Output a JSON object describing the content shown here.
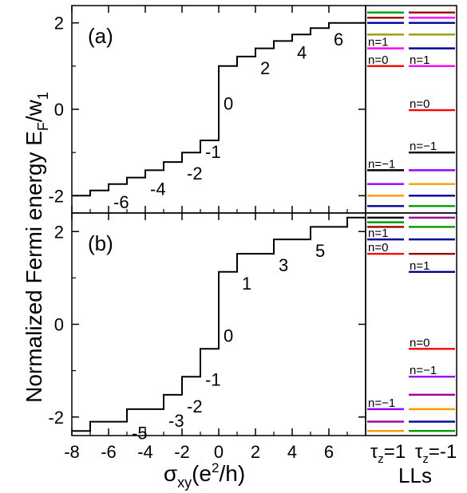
{
  "figure": {
    "ylabel_main": "Normalized Fermi energy E",
    "ylabel_sub": "F",
    "ylabel_sep": "/w",
    "ylabel_sub2": "1",
    "xlabel_sigma": "σ",
    "xlabel_sub": "xy",
    "xlabel_rest": "(e",
    "xlabel_sup": "2",
    "xlabel_end": "/h)",
    "ll_title": "LLs",
    "tau_sym": "τ",
    "tau_sub": "z",
    "tau1_value": "=1",
    "tau2_value": "=-1"
  },
  "colors": {
    "black": "#000000",
    "red": "#ff0000",
    "magenta": "#ff00ff",
    "olive": "#999900",
    "navy": "#000099",
    "maroon": "#990000",
    "purple": "#9900ff",
    "orange": "#ff9900",
    "green": "#009900",
    "violet": "#990099"
  },
  "chart_data": [
    {
      "type": "line",
      "panel_label": "(a)",
      "xlim": [
        -8,
        8
      ],
      "ylim": [
        -2.4,
        2.4
      ],
      "xticks": [
        -8,
        -6,
        -4,
        -2,
        0,
        2,
        4,
        6
      ],
      "yticks": [
        -2,
        0,
        2
      ],
      "ytick_labels": [
        "-2",
        "0",
        "2"
      ],
      "curve": [
        [
          -8,
          -2.0
        ],
        [
          -7,
          -2.0
        ],
        [
          -7,
          -1.88
        ],
        [
          -6,
          -1.88
        ],
        [
          -6,
          -1.73
        ],
        [
          -5,
          -1.73
        ],
        [
          -5,
          -1.58
        ],
        [
          -4,
          -1.58
        ],
        [
          -4,
          -1.41
        ],
        [
          -3,
          -1.41
        ],
        [
          -3,
          -1.22
        ],
        [
          -2,
          -1.22
        ],
        [
          -2,
          -1.0
        ],
        [
          -1,
          -1.0
        ],
        [
          -1,
          -0.72
        ],
        [
          0,
          -0.72
        ],
        [
          0,
          1.0
        ],
        [
          1,
          1.0
        ],
        [
          1,
          1.22
        ],
        [
          2,
          1.22
        ],
        [
          2,
          1.41
        ],
        [
          3,
          1.41
        ],
        [
          3,
          1.58
        ],
        [
          4,
          1.58
        ],
        [
          4,
          1.73
        ],
        [
          5,
          1.73
        ],
        [
          5,
          1.88
        ],
        [
          6,
          1.88
        ],
        [
          6,
          2.0
        ],
        [
          7,
          2.0
        ],
        [
          7,
          2.0
        ],
        [
          8,
          2.0
        ]
      ],
      "step_labels": [
        {
          "text": "-6",
          "x": -6,
          "y": -1.88
        },
        {
          "text": "-4",
          "x": -4,
          "y": -1.58
        },
        {
          "text": "-2",
          "x": -2,
          "y": -1.22
        },
        {
          "text": "-1",
          "x": -1,
          "y": -0.72
        },
        {
          "text": "0",
          "x": 0,
          "y": 0.4
        },
        {
          "text": "2",
          "x": 2,
          "y": 1.22
        },
        {
          "text": "4",
          "x": 4,
          "y": 1.58
        },
        {
          "text": "6",
          "x": 6,
          "y": 1.88
        }
      ],
      "levels": [
        {
          "col": 1,
          "y": 2.24,
          "color": "#009900"
        },
        {
          "col": 1,
          "y": 2.12,
          "color": "#990000"
        },
        {
          "col": 1,
          "y": 2.0,
          "color": "#000099"
        },
        {
          "col": 1,
          "y": 1.73,
          "color": "#999900"
        },
        {
          "col": 1,
          "y": 1.41,
          "color": "#ff00ff"
        },
        {
          "col": 1,
          "y": 1.0,
          "color": "#ff0000"
        },
        {
          "col": 1,
          "y": -1.41,
          "color": "#000000"
        },
        {
          "col": 1,
          "y": -1.73,
          "color": "#9900ff"
        },
        {
          "col": 1,
          "y": -2.0,
          "color": "#ff9900"
        },
        {
          "col": 1,
          "y": -2.24,
          "color": "#000099"
        },
        {
          "col": 2,
          "y": 2.24,
          "color": "#990000"
        },
        {
          "col": 2,
          "y": 2.12,
          "color": "#ff00ff"
        },
        {
          "col": 2,
          "y": 2.0,
          "color": "#000099"
        },
        {
          "col": 2,
          "y": 1.73,
          "color": "#999900"
        },
        {
          "col": 2,
          "y": 1.41,
          "color": "#000099"
        },
        {
          "col": 2,
          "y": 1.0,
          "color": "#ff00ff"
        },
        {
          "col": 2,
          "y": -0.02,
          "color": "#ff0000"
        },
        {
          "col": 2,
          "y": -1.0,
          "color": "#000000"
        },
        {
          "col": 2,
          "y": -1.41,
          "color": "#9900ff"
        },
        {
          "col": 2,
          "y": -1.73,
          "color": "#ff9900"
        },
        {
          "col": 2,
          "y": -2.0,
          "color": "#000099"
        },
        {
          "col": 2,
          "y": -2.24,
          "color": "#009900"
        }
      ],
      "level_labels": [
        {
          "col": 1,
          "y": 1.41,
          "text": "n=1"
        },
        {
          "col": 1,
          "y": 1.0,
          "text": "n=0"
        },
        {
          "col": 1,
          "y": -1.41,
          "text": "n=−1"
        },
        {
          "col": 2,
          "y": 1.0,
          "text": "n=1"
        },
        {
          "col": 2,
          "y": -0.02,
          "text": "n=0"
        },
        {
          "col": 2,
          "y": -1.0,
          "text": "n=−1"
        }
      ]
    },
    {
      "type": "line",
      "panel_label": "(b)",
      "xlim": [
        -8,
        8
      ],
      "ylim": [
        -2.4,
        2.4
      ],
      "xticks": [
        -8,
        -6,
        -4,
        -2,
        0,
        2,
        4,
        6
      ],
      "xtick_labels": [
        "-8",
        "-6",
        "-4",
        "-2",
        "0",
        "2",
        "4",
        "6"
      ],
      "yticks": [
        -2,
        0,
        2
      ],
      "ytick_labels": [
        "-2",
        "0",
        "2"
      ],
      "curve": [
        [
          -8,
          -2.3
        ],
        [
          -7,
          -2.3
        ],
        [
          -7,
          -2.1
        ],
        [
          -5,
          -2.1
        ],
        [
          -5,
          -1.83
        ],
        [
          -3,
          -1.83
        ],
        [
          -3,
          -1.52
        ],
        [
          -2,
          -1.52
        ],
        [
          -2,
          -1.13
        ],
        [
          -1,
          -1.13
        ],
        [
          -1,
          -0.53
        ],
        [
          0,
          -0.53
        ],
        [
          0,
          1.13
        ],
        [
          1,
          1.13
        ],
        [
          1,
          1.52
        ],
        [
          3,
          1.52
        ],
        [
          3,
          1.83
        ],
        [
          5,
          1.83
        ],
        [
          5,
          2.1
        ],
        [
          7,
          2.1
        ],
        [
          7,
          2.3
        ],
        [
          8,
          2.3
        ]
      ],
      "step_labels": [
        {
          "text": "-5",
          "x": -5,
          "y": -2.1
        },
        {
          "text": "-3",
          "x": -3,
          "y": -1.83
        },
        {
          "text": "-2",
          "x": -2,
          "y": -1.52
        },
        {
          "text": "-1",
          "x": -1,
          "y": -0.95
        },
        {
          "text": "0",
          "x": 0,
          "y": 0.0
        },
        {
          "text": "1",
          "x": 1,
          "y": 1.13
        },
        {
          "text": "3",
          "x": 3,
          "y": 1.52
        },
        {
          "text": "5",
          "x": 5,
          "y": 1.83
        }
      ],
      "levels": [
        {
          "col": 1,
          "y": 2.3,
          "color": "#000000"
        },
        {
          "col": 1,
          "y": 2.2,
          "color": "#009900"
        },
        {
          "col": 1,
          "y": 2.1,
          "color": "#990000"
        },
        {
          "col": 1,
          "y": 1.83,
          "color": "#000099"
        },
        {
          "col": 1,
          "y": 1.52,
          "color": "#ff0000"
        },
        {
          "col": 1,
          "y": -1.83,
          "color": "#9900ff"
        },
        {
          "col": 1,
          "y": -2.1,
          "color": "#990099"
        },
        {
          "col": 1,
          "y": -2.3,
          "color": "#ff9900"
        },
        {
          "col": 2,
          "y": 2.3,
          "color": "#990099"
        },
        {
          "col": 2,
          "y": 2.1,
          "color": "#009900"
        },
        {
          "col": 2,
          "y": 1.83,
          "color": "#000099"
        },
        {
          "col": 2,
          "y": 1.52,
          "color": "#990000"
        },
        {
          "col": 2,
          "y": 1.13,
          "color": "#000099"
        },
        {
          "col": 2,
          "y": -0.53,
          "color": "#ff0000"
        },
        {
          "col": 2,
          "y": -1.13,
          "color": "#9900ff"
        },
        {
          "col": 2,
          "y": -1.52,
          "color": "#990099"
        },
        {
          "col": 2,
          "y": -1.83,
          "color": "#ff9900"
        },
        {
          "col": 2,
          "y": -2.1,
          "color": "#000099"
        },
        {
          "col": 2,
          "y": -2.3,
          "color": "#009900"
        }
      ],
      "level_labels": [
        {
          "col": 1,
          "y": 1.83,
          "text": "n=1"
        },
        {
          "col": 1,
          "y": 1.52,
          "text": "n=0"
        },
        {
          "col": 1,
          "y": -1.83,
          "text": "n=−1"
        },
        {
          "col": 2,
          "y": 1.13,
          "text": "n=1"
        },
        {
          "col": 2,
          "y": -0.53,
          "text": "n=0"
        },
        {
          "col": 2,
          "y": -1.13,
          "text": "n=−1"
        }
      ]
    }
  ]
}
